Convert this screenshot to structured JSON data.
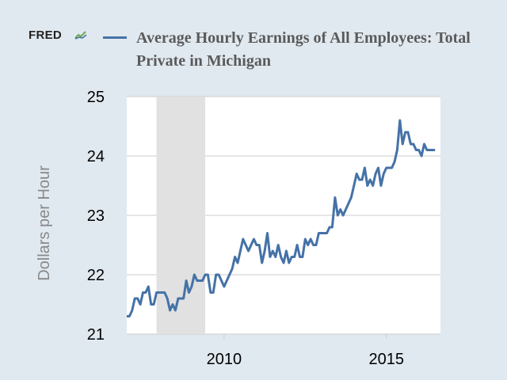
{
  "brand": {
    "logo_text": "FRED"
  },
  "colors": {
    "background": "#e1e9f0",
    "plot_bg": "#ffffff",
    "line": "#4572a7",
    "recession": "#e1e1e1",
    "grid": "#cccccc",
    "logo_mark": "icon"
  },
  "chart_data": {
    "type": "line",
    "title": "Average Hourly Earnings of All Employees: Total Private in Michigan",
    "ylabel": "Dollars per Hour",
    "ylim": [
      21,
      25
    ],
    "xlim": [
      "2007-01",
      "2016-09"
    ],
    "yticks": [
      "21",
      "22",
      "23",
      "24",
      "25"
    ],
    "xticks": [
      {
        "value": "2010-01",
        "label": "2010"
      },
      {
        "value": "2015-01",
        "label": "2015"
      }
    ],
    "grid": true,
    "recession_bands": [
      {
        "start": "2007-12",
        "end": "2009-06"
      }
    ],
    "series": [
      {
        "name": "Average Hourly Earnings of All Employees: Total Private in Michigan",
        "start": "2007-01",
        "frequency": "monthly",
        "values": [
          21.3,
          21.3,
          21.4,
          21.6,
          21.6,
          21.5,
          21.7,
          21.7,
          21.8,
          21.5,
          21.5,
          21.7,
          21.7,
          21.7,
          21.7,
          21.6,
          21.4,
          21.5,
          21.4,
          21.6,
          21.6,
          21.6,
          21.9,
          21.7,
          21.8,
          22.0,
          21.9,
          21.9,
          21.9,
          22.0,
          22.0,
          21.7,
          21.7,
          22.0,
          22.0,
          21.9,
          21.8,
          21.9,
          22.0,
          22.1,
          22.3,
          22.2,
          22.4,
          22.6,
          22.5,
          22.4,
          22.5,
          22.6,
          22.5,
          22.5,
          22.2,
          22.4,
          22.7,
          22.3,
          22.4,
          22.3,
          22.5,
          22.3,
          22.2,
          22.4,
          22.2,
          22.3,
          22.3,
          22.5,
          22.3,
          22.3,
          22.6,
          22.5,
          22.6,
          22.5,
          22.5,
          22.7,
          22.7,
          22.7,
          22.7,
          22.8,
          22.8,
          23.3,
          23.0,
          23.1,
          23.0,
          23.1,
          23.2,
          23.3,
          23.5,
          23.7,
          23.6,
          23.6,
          23.8,
          23.5,
          23.6,
          23.5,
          23.7,
          23.8,
          23.5,
          23.7,
          23.8,
          23.8,
          23.8,
          23.9,
          24.1,
          24.6,
          24.2,
          24.4,
          24.4,
          24.2,
          24.2,
          24.1,
          24.1,
          24.0,
          24.2,
          24.1,
          24.1,
          24.1,
          24.1
        ]
      }
    ]
  }
}
